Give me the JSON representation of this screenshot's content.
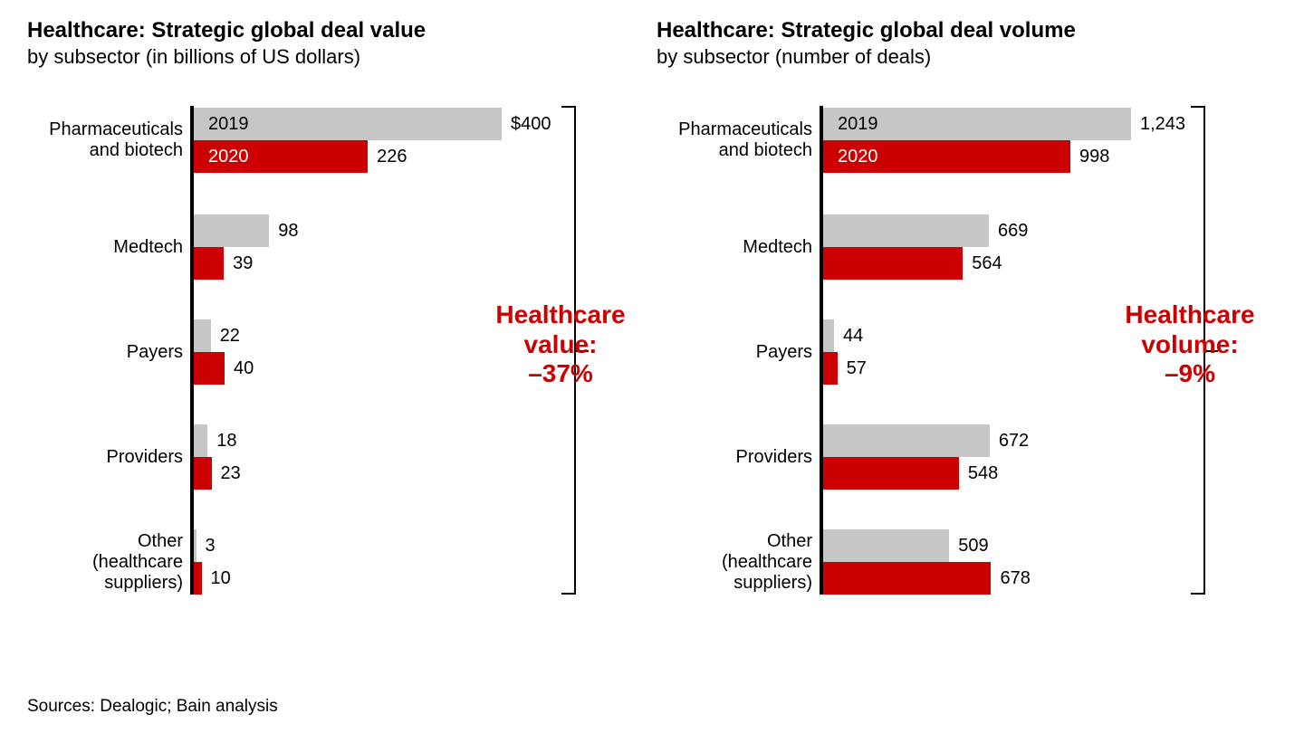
{
  "colors": {
    "series2019": "#c6c6c6",
    "series2020": "#cc0000",
    "annotation": "#cc0000",
    "text": "#000000",
    "textOnRed": "#ffffff",
    "textOnGray": "#000000",
    "background": "#ffffff"
  },
  "layout": {
    "barHeight": 36,
    "groupGap": 44,
    "firstGroupExtraHeight": 4,
    "catLabelWidth": 180,
    "chartPlotWidth": 340,
    "fontSizeTitle": 24,
    "fontSizeSubtitle": 22,
    "fontSizeLabel": 20,
    "fontSizeAnnotation": 28
  },
  "seriesLabels": {
    "y2019": "2019",
    "y2020": "2020"
  },
  "charts": [
    {
      "id": "value",
      "title": "Healthcare: Strategic global deal value",
      "subtitle": "by subsector (in billions of US dollars)",
      "xmax": 400,
      "valuePrefixFirst": "$",
      "annotation": {
        "line1": "Healthcare",
        "line2": "value:",
        "line3": "–37%"
      },
      "categories": [
        {
          "label": "Pharmaceuticals\nand biotech",
          "y2019": 400,
          "y2020": 226
        },
        {
          "label": "Medtech",
          "y2019": 98,
          "y2020": 39
        },
        {
          "label": "Payers",
          "y2019": 22,
          "y2020": 40
        },
        {
          "label": "Providers",
          "y2019": 18,
          "y2020": 23
        },
        {
          "label": "Other\n(healthcare\nsuppliers)",
          "y2019": 3,
          "y2020": 10
        }
      ]
    },
    {
      "id": "volume",
      "title": "Healthcare: Strategic global deal volume",
      "subtitle": "by subsector (number of deals)",
      "xmax": 1243,
      "valuePrefixFirst": "",
      "annotation": {
        "line1": "Healthcare",
        "line2": "volume:",
        "line3": "–9%"
      },
      "categories": [
        {
          "label": "Pharmaceuticals\nand biotech",
          "y2019": 1243,
          "y2020": 998
        },
        {
          "label": "Medtech",
          "y2019": 669,
          "y2020": 564
        },
        {
          "label": "Payers",
          "y2019": 44,
          "y2020": 57
        },
        {
          "label": "Providers",
          "y2019": 672,
          "y2020": 548
        },
        {
          "label": "Other\n(healthcare\nsuppliers)",
          "y2019": 509,
          "y2020": 678
        }
      ]
    }
  ],
  "sources": "Sources: Dealogic; Bain analysis"
}
